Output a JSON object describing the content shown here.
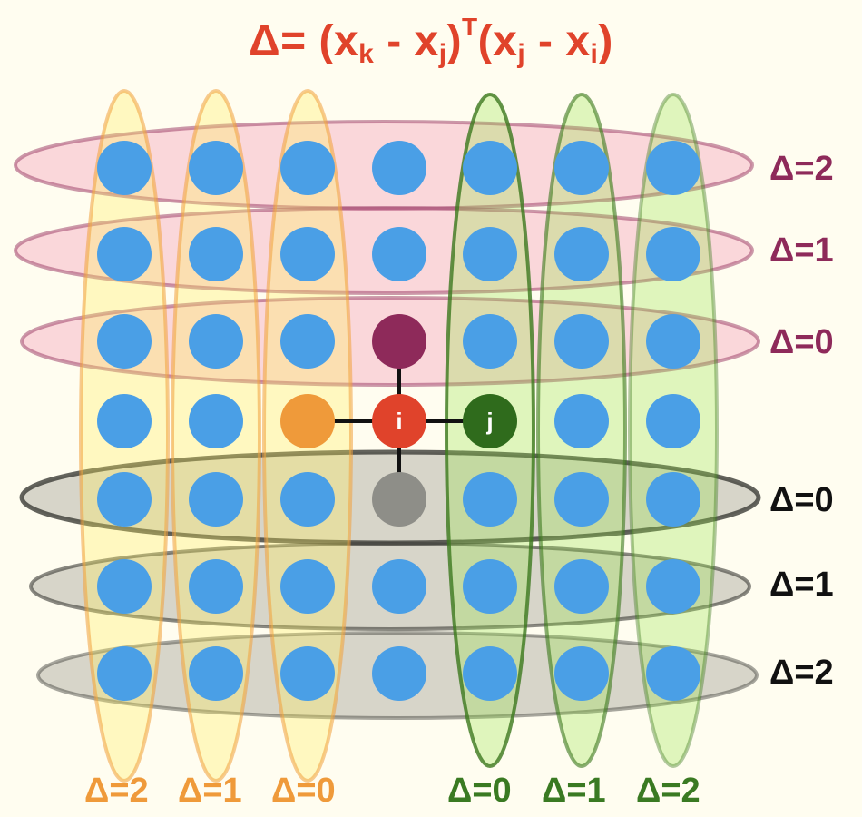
{
  "title": {
    "delta": "Δ=",
    "open1": " (x",
    "k": "k",
    "minus1": " - x",
    "j1": "j",
    "close1": ")",
    "T": "T",
    "open2": "(x",
    "j2": "j",
    "minus2": " - x",
    "i": "i",
    "close2": ")"
  },
  "colors": {
    "background": "#fffdf0",
    "dot": "#4a9fe6",
    "node_i": "#e0432b",
    "node_j": "#2f6b1c",
    "node_up": "#8e2a5a",
    "node_left": "#ef9a3a",
    "node_down": "#8e8e88",
    "title": "#e0432b",
    "label_pink": "#8e2a5a",
    "label_black": "#111111",
    "label_orange": "#ef9a3a",
    "label_green": "#3a7a22"
  },
  "nodes": {
    "center": "i",
    "right": "j"
  },
  "right_labels": {
    "pink": [
      "Δ=2",
      "Δ=1",
      "Δ=0"
    ],
    "gray": [
      "Δ=0",
      "Δ=1",
      "Δ=2"
    ]
  },
  "bottom_labels": {
    "yellow": [
      "Δ=2",
      "Δ=1",
      "Δ=0"
    ],
    "green": [
      "Δ=0",
      "Δ=1",
      "Δ=2"
    ]
  }
}
